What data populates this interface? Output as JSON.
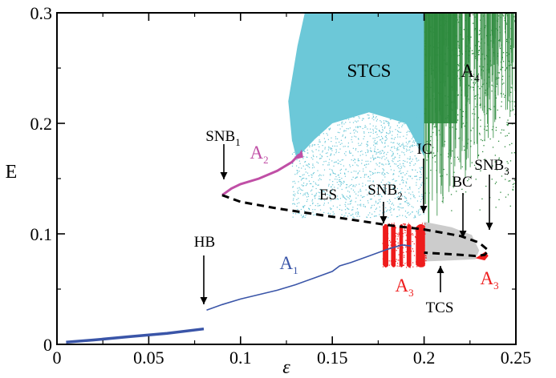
{
  "chart_data": {
    "type": "scatter",
    "title": "",
    "xlabel": "ε",
    "ylabel": "E",
    "xlim": [
      0,
      0.25
    ],
    "ylim": [
      0,
      0.3
    ],
    "xticks": [
      0,
      0.05,
      0.1,
      0.15,
      0.2,
      0.25
    ],
    "xtick_labels": [
      "0",
      "0.05",
      "0.1",
      "0.15",
      "0.2",
      "0.25"
    ],
    "yticks": [
      0,
      0.1,
      0.2,
      0.3
    ],
    "ytick_labels": [
      "0",
      "0.1",
      "0.2",
      "0.3"
    ],
    "grid": false,
    "colors": {
      "A1": "#3a55a8",
      "A2": "#c04fa6",
      "ES": "#000000",
      "A3": "#ee1c1c",
      "TCS": "#cccccc",
      "STCS": "#6cc8d8",
      "A4": "#2e8b3e"
    },
    "series": [
      {
        "key": "A1_low",
        "color_key": "A1",
        "style": "thick-line",
        "x": [
          0.005,
          0.02,
          0.04,
          0.06,
          0.08
        ],
        "y": [
          0.002,
          0.004,
          0.007,
          0.01,
          0.014
        ]
      },
      {
        "key": "A1",
        "color_key": "A1",
        "style": "line",
        "x": [
          0.0815,
          0.09,
          0.1,
          0.11,
          0.12,
          0.13,
          0.14,
          0.15,
          0.154,
          0.16,
          0.17,
          0.18,
          0.188,
          0.193
        ],
        "y": [
          0.031,
          0.036,
          0.041,
          0.045,
          0.049,
          0.054,
          0.06,
          0.066,
          0.071,
          0.074,
          0.08,
          0.086,
          0.09,
          0.089
        ]
      },
      {
        "key": "A2",
        "color_key": "A2",
        "style": "line",
        "x": [
          0.09,
          0.095,
          0.1,
          0.11,
          0.12,
          0.128,
          0.132
        ],
        "y": [
          0.135,
          0.141,
          0.145,
          0.15,
          0.157,
          0.165,
          0.172
        ]
      },
      {
        "key": "ES",
        "color_key": "ES",
        "style": "dashed",
        "x": [
          0.09,
          0.1,
          0.12,
          0.14,
          0.16,
          0.18,
          0.2,
          0.22,
          0.23,
          0.235,
          0.233,
          0.228,
          0.22,
          0.21,
          0.2
        ],
        "y": [
          0.135,
          0.129,
          0.123,
          0.118,
          0.113,
          0.108,
          0.104,
          0.098,
          0.092,
          0.085,
          0.081,
          0.08,
          0.081,
          0.082,
          0.083
        ]
      }
    ],
    "regions": [
      {
        "key": "STCS",
        "color_key": "STCS",
        "x": [
          0.126,
          0.2
        ],
        "y": [
          0.165,
          0.3
        ]
      },
      {
        "key": "A4",
        "color_key": "A4",
        "x": [
          0.2,
          0.25
        ],
        "y": [
          0.12,
          0.3
        ]
      },
      {
        "key": "TCS",
        "color_key": "TCS",
        "x": [
          0.2,
          0.228
        ],
        "y": [
          0.075,
          0.111
        ]
      },
      {
        "key": "A3_left",
        "color_key": "A3",
        "x": [
          0.177,
          0.2
        ],
        "y": [
          0.069,
          0.111
        ]
      },
      {
        "key": "A3_right",
        "color_key": "A3",
        "x": [
          0.228,
          0.235
        ],
        "y": [
          0.075,
          0.088
        ]
      }
    ],
    "annotations": [
      {
        "key": "SNB1",
        "text": "SNB",
        "sub": "1"
      },
      {
        "key": "A2",
        "text": "A",
        "sub": "2"
      },
      {
        "key": "HB",
        "text": "HB",
        "sub": ""
      },
      {
        "key": "A1",
        "text": "A",
        "sub": "1"
      },
      {
        "key": "ES",
        "text": "ES",
        "sub": ""
      },
      {
        "key": "STCS",
        "text": "STCS",
        "sub": ""
      },
      {
        "key": "A4",
        "text": "A",
        "sub": "4"
      },
      {
        "key": "IC",
        "text": "IC",
        "sub": ""
      },
      {
        "key": "SNB2",
        "text": "SNB",
        "sub": "2"
      },
      {
        "key": "BC",
        "text": "BC",
        "sub": ""
      },
      {
        "key": "SNB3",
        "text": "SNB",
        "sub": "3"
      },
      {
        "key": "A3_left",
        "text": "A",
        "sub": "3"
      },
      {
        "key": "A3_right",
        "text": "A",
        "sub": "3"
      },
      {
        "key": "TCS",
        "text": "TCS",
        "sub": ""
      }
    ]
  }
}
